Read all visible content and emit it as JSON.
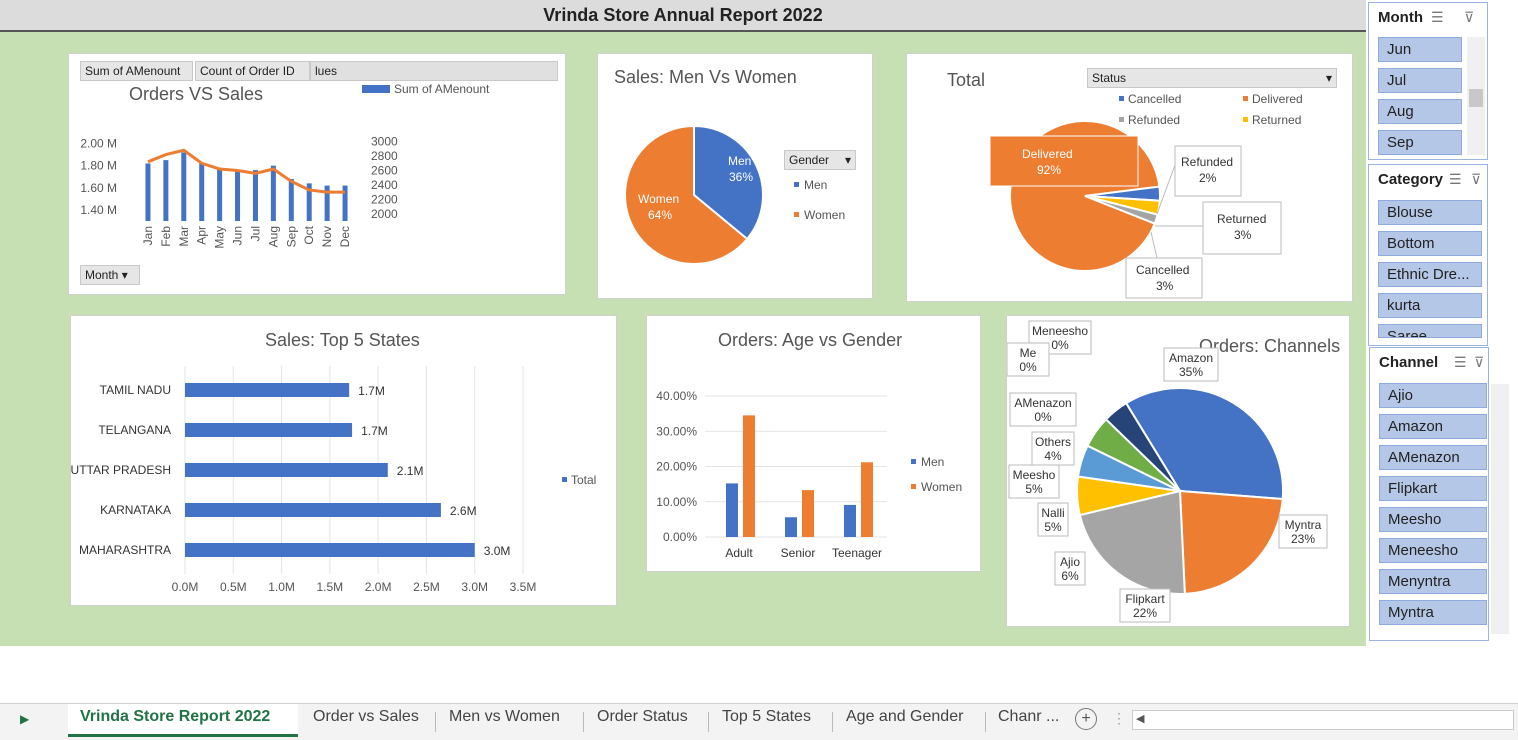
{
  "title": "Vrinda  Store Annual Report 2022",
  "pivot_buttons": {
    "sum_amount": "Sum of AMenount",
    "count_orders": "Count of Order ID",
    "values": "lues",
    "month": "Month"
  },
  "orders_vs_sales": {
    "title": "Orders VS Sales",
    "legend": "Sum of AMenount",
    "y_left_ticks": [
      "2.00 M",
      "1.80 M",
      "1.60 M",
      "1.40 M"
    ],
    "y_right_ticks": [
      "3000",
      "2800",
      "2600",
      "2400",
      "2200",
      "2000"
    ],
    "months": [
      "Jan",
      "Feb",
      "Mar",
      "Apr",
      "May",
      "Jun",
      "Jul",
      "Aug",
      "Sep",
      "Oct",
      "Nov",
      "Dec"
    ]
  },
  "men_women": {
    "title": "Sales: Men Vs Women",
    "filter": "Gender",
    "legend": [
      "Men",
      "Women"
    ],
    "men_label": "Men",
    "men_pct": "36%",
    "women_label": "Women",
    "women_pct": "64%"
  },
  "status": {
    "title": "Total",
    "filter": "Status",
    "legend": [
      "Cancelled",
      "Delivered",
      "Refunded",
      "Returned"
    ],
    "labels": {
      "delivered": "Delivered",
      "delivered_pct": "92%",
      "refunded": "Refunded",
      "refunded_pct": "2%",
      "returned": "Returned",
      "returned_pct": "3%",
      "cancelled": "Cancelled",
      "cancelled_pct": "3%"
    }
  },
  "top_states": {
    "title": "Sales: Top 5 States",
    "legend": "Total",
    "x_ticks": [
      "0.0M",
      "0.5M",
      "1.0M",
      "1.5M",
      "2.0M",
      "2.5M",
      "3.0M",
      "3.5M"
    ],
    "value_labels": [
      "1.7M",
      "1.7M",
      "2.1M",
      "2.6M",
      "3.0M"
    ]
  },
  "age_gender": {
    "title": "Orders: Age vs Gender",
    "y_ticks": [
      "40.00%",
      "30.00%",
      "20.00%",
      "10.00%",
      "0.00%"
    ],
    "legend": [
      "Men",
      "Women"
    ]
  },
  "channels": {
    "title": "Orders: Channels",
    "labels": [
      {
        "name": "Meneesho",
        "pct": "0%"
      },
      {
        "name": "Me",
        "pct": "0%"
      },
      {
        "name": "AMenazon",
        "pct": "0%"
      },
      {
        "name": "Others",
        "pct": "4%"
      },
      {
        "name": "Meesho",
        "pct": "5%"
      },
      {
        "name": "Nalli",
        "pct": "5%"
      },
      {
        "name": "Ajio",
        "pct": "6%"
      },
      {
        "name": "Flipkart",
        "pct": "22%"
      },
      {
        "name": "Myntra",
        "pct": "23%"
      },
      {
        "name": "Amazon",
        "pct": "35%"
      }
    ]
  },
  "slicers": {
    "month": {
      "title": "Month",
      "items": [
        "Jun",
        "Jul",
        "Aug",
        "Sep"
      ]
    },
    "category": {
      "title": "Category",
      "items": [
        "Blouse",
        "Bottom",
        "Ethnic Dre...",
        "kurta",
        "Saree"
      ]
    },
    "channel": {
      "title": "Channel",
      "items": [
        "Ajio",
        "Amazon",
        "AMenazon",
        "Flipkart",
        "Meesho",
        "Meneesho",
        "Menyntra",
        "Myntra"
      ]
    }
  },
  "sheet_tabs": [
    "Vrinda Store Report 2022",
    "Order vs Sales",
    "Men vs Women",
    "Order Status",
    "Top 5 States",
    "Age and Gender",
    "Chanr ..."
  ],
  "chart_data": [
    {
      "type": "bar",
      "title": "Orders VS Sales",
      "categories": [
        "Jan",
        "Feb",
        "Mar",
        "Apr",
        "May",
        "Jun",
        "Jul",
        "Aug",
        "Sep",
        "Oct",
        "Nov",
        "Dec"
      ],
      "series": [
        {
          "name": "Sum of AMenount",
          "values": [
            1.82,
            1.85,
            1.92,
            1.82,
            1.78,
            1.76,
            1.76,
            1.8,
            1.68,
            1.64,
            1.62,
            1.62
          ]
        }
      ],
      "line_values": [
        2720,
        2820,
        2880,
        2700,
        2620,
        2600,
        2560,
        2620,
        2450,
        2330,
        2300,
        2300
      ],
      "ylim": [
        1.3,
        2.05
      ],
      "y2lim": [
        1900,
        3050
      ]
    },
    {
      "type": "pie",
      "title": "Sales: Men Vs Women",
      "categories": [
        "Men",
        "Women"
      ],
      "values": [
        36,
        64
      ],
      "colors": [
        "#4472c4",
        "#ed7d31"
      ]
    },
    {
      "type": "pie",
      "title": "Total",
      "categories": [
        "Delivered",
        "Cancelled",
        "Returned",
        "Refunded"
      ],
      "values": [
        92,
        3,
        3,
        2
      ],
      "colors": [
        "#ed7d31",
        "#4472c4",
        "#ffc000",
        "#a5a5a5"
      ]
    },
    {
      "type": "bar",
      "title": "Sales: Top 5 States",
      "categories": [
        "TAMIL NADU",
        "TELANGANA",
        "UTTAR PRADESH",
        "KARNATAKA",
        "MAHARASHTRA"
      ],
      "values": [
        1.7,
        1.73,
        2.1,
        2.65,
        3.0
      ],
      "xlim": [
        0,
        3.5
      ]
    },
    {
      "type": "bar",
      "title": "Orders: Age vs Gender",
      "categories": [
        "Adult",
        "Senior",
        "Teenager"
      ],
      "series": [
        {
          "name": "Men",
          "values": [
            15.2,
            5.6,
            9.1
          ]
        },
        {
          "name": "Women",
          "values": [
            34.5,
            13.3,
            21.2
          ]
        }
      ],
      "ylim": [
        0,
        40
      ]
    },
    {
      "type": "pie",
      "title": "Orders: Channels",
      "categories": [
        "Amazon",
        "Myntra",
        "Flipkart",
        "Ajio",
        "Nalli",
        "Meesho",
        "Others",
        "AMenazon",
        "Me",
        "Meneesho"
      ],
      "values": [
        35,
        23,
        22,
        6,
        5,
        5,
        4,
        0,
        0,
        0
      ],
      "colors": [
        "#4472c4",
        "#ed7d31",
        "#a5a5a5",
        "#ffc000",
        "#5b9bd5",
        "#70ad47",
        "#264478",
        "#9e480e",
        "#636363",
        "#997300"
      ]
    }
  ]
}
